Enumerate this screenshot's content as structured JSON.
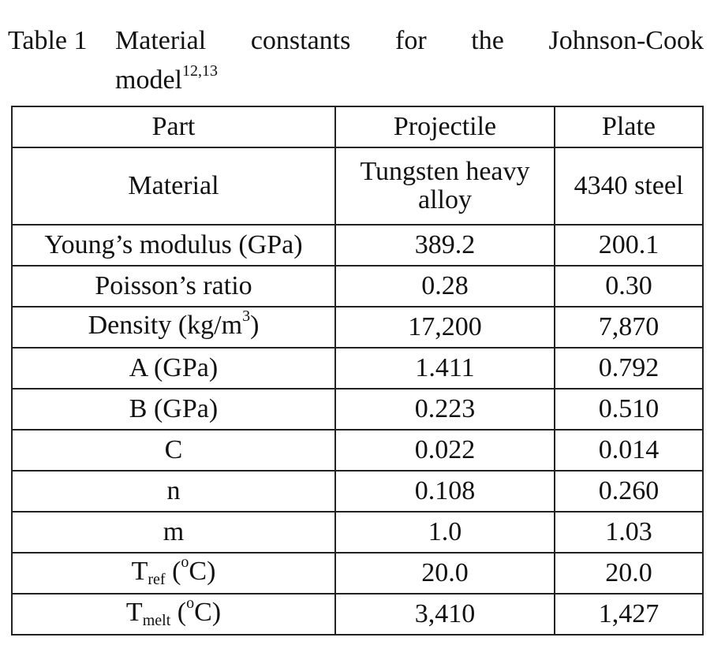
{
  "caption": {
    "label": "Table 1",
    "words": [
      "Material",
      "constants",
      "for",
      "the",
      "Johnson-Cook"
    ],
    "line2": "model",
    "refs": "12,13"
  },
  "table": {
    "headers": [
      "Part",
      "Projectile",
      "Plate"
    ],
    "material": {
      "label": "Material",
      "projectile": "Tungsten heavy alloy",
      "plate": "4340 steel"
    },
    "youngs": {
      "label": "Young’s modulus (GPa)",
      "projectile": "389.2",
      "plate": "200.1"
    },
    "poisson": {
      "label": "Poisson’s ratio",
      "projectile": "0.28",
      "plate": "0.30"
    },
    "density": {
      "label_pre": "Density (kg/m",
      "label_sup": "3",
      "label_post": ")",
      "projectile": "17,200",
      "plate": "7,870"
    },
    "A": {
      "label": "A (GPa)",
      "projectile": "1.411",
      "plate": "0.792"
    },
    "B": {
      "label": "B (GPa)",
      "projectile": "0.223",
      "plate": "0.510"
    },
    "C": {
      "label": "C",
      "projectile": "0.022",
      "plate": "0.014"
    },
    "n": {
      "label": "n",
      "projectile": "0.108",
      "plate": "0.260"
    },
    "m": {
      "label": "m",
      "projectile": "1.0",
      "plate": "1.03"
    },
    "tref": {
      "label_base": "T",
      "label_sub": "ref",
      "label_pre": " (",
      "label_sup": "o",
      "label_post": "C)",
      "projectile": "20.0",
      "plate": "20.0"
    },
    "tmelt": {
      "label_base": "T",
      "label_sub": "melt",
      "label_pre": " (",
      "label_sup": "o",
      "label_post": "C)",
      "projectile": "3,410",
      "plate": "1,427"
    }
  }
}
